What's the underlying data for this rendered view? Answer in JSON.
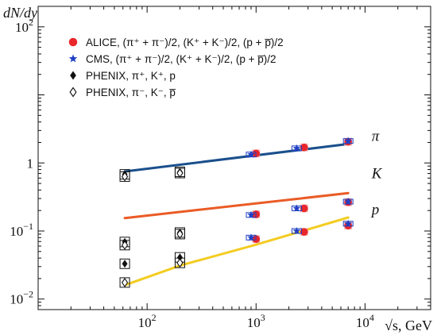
{
  "chart_data": {
    "type": "scatter",
    "ylabel": "dN/dy",
    "xlabel": "√s, GeV",
    "x_scale": "log",
    "y_scale": "log",
    "xlim": [
      10,
      40000
    ],
    "ylim": [
      0.007,
      200
    ],
    "x_ticks": [
      {
        "value": 100,
        "base": "10",
        "exp": "2"
      },
      {
        "value": 1000,
        "base": "10",
        "exp": "3"
      },
      {
        "value": 10000,
        "base": "10",
        "exp": "4"
      }
    ],
    "y_ticks": [
      {
        "value": 0.01,
        "base": "10",
        "exp": "−2"
      },
      {
        "value": 0.1,
        "base": "10",
        "exp": "−1"
      },
      {
        "value": 1,
        "base": "1",
        "exp": ""
      },
      {
        "value": 100,
        "base": "10",
        "exp": "2"
      }
    ],
    "legend": {
      "position": "top-left",
      "entries": [
        {
          "marker": "circle",
          "color": "#e8262b",
          "label": "ALICE, (π⁺ + π⁻)/2, (K⁺ + K⁻)/2, (p + p̅)/2"
        },
        {
          "marker": "star",
          "color": "#1f3fc4",
          "label": "CMS, (π⁺ + π⁻)/2, (K⁺ + K⁻)/2, (p + p̅)/2"
        },
        {
          "marker": "diamond-filled",
          "color": "#111111",
          "label": "PHENIX, π⁺, K⁺, p"
        },
        {
          "marker": "diamond-open",
          "color": "#111111",
          "label": "PHENIX, π⁻, K⁻, p̅"
        }
      ]
    },
    "annotations": [
      {
        "text": "π",
        "x": 11500,
        "y": 2.1
      },
      {
        "text": "K",
        "x": 11500,
        "y": 0.6
      },
      {
        "text": "p",
        "x": 11500,
        "y": 0.175
      }
    ],
    "series": [
      {
        "name": "ALICE",
        "marker": "circle",
        "color": "#e8262b",
        "points": [
          {
            "x": 1000,
            "y": 1.38
          },
          {
            "x": 2760,
            "y": 1.69
          },
          {
            "x": 7000,
            "y": 2.05
          },
          {
            "x": 1000,
            "y": 0.176
          },
          {
            "x": 2760,
            "y": 0.215
          },
          {
            "x": 7000,
            "y": 0.265
          },
          {
            "x": 1000,
            "y": 0.076
          },
          {
            "x": 2760,
            "y": 0.097
          },
          {
            "x": 7000,
            "y": 0.12
          }
        ]
      },
      {
        "name": "CMS",
        "marker": "star",
        "color": "#1f3fc4",
        "points": [
          {
            "x": 900,
            "y": 1.33
          },
          {
            "x": 2360,
            "y": 1.64
          },
          {
            "x": 7000,
            "y": 2.1
          },
          {
            "x": 900,
            "y": 0.172
          },
          {
            "x": 2360,
            "y": 0.215
          },
          {
            "x": 7000,
            "y": 0.27
          },
          {
            "x": 900,
            "y": 0.08
          },
          {
            "x": 2360,
            "y": 0.1
          },
          {
            "x": 7000,
            "y": 0.128
          }
        ]
      },
      {
        "name": "PHENIX, π⁺, K⁺, p",
        "marker": "diamond-filled",
        "color": "#111111",
        "points": [
          {
            "x": 62.4,
            "y": 0.68
          },
          {
            "x": 200,
            "y": 0.74
          },
          {
            "x": 62.4,
            "y": 0.069
          },
          {
            "x": 200,
            "y": 0.095
          },
          {
            "x": 62.4,
            "y": 0.033
          },
          {
            "x": 200,
            "y": 0.041
          }
        ]
      },
      {
        "name": "PHENIX, π⁻, K⁻, p̅",
        "marker": "diamond-open",
        "color": "#111111",
        "points": [
          {
            "x": 62.4,
            "y": 0.63
          },
          {
            "x": 200,
            "y": 0.71
          },
          {
            "x": 62.4,
            "y": 0.062
          },
          {
            "x": 200,
            "y": 0.09
          },
          {
            "x": 62.4,
            "y": 0.0175
          },
          {
            "x": 200,
            "y": 0.034
          }
        ]
      }
    ],
    "curves": [
      {
        "particle": "π",
        "color": "#1a4f8c",
        "points": [
          {
            "x": 62.4,
            "y": 0.75
          },
          {
            "x": 7000,
            "y": 1.9
          }
        ]
      },
      {
        "particle": "K",
        "color": "#ea5b25",
        "points": [
          {
            "x": 62.4,
            "y": 0.155
          },
          {
            "x": 7000,
            "y": 0.36
          }
        ]
      },
      {
        "particle": "p",
        "color": "#f3cc21",
        "points": [
          {
            "x": 62.4,
            "y": 0.016
          },
          {
            "x": 200,
            "y": 0.031
          },
          {
            "x": 1000,
            "y": 0.063
          },
          {
            "x": 7000,
            "y": 0.158
          }
        ]
      }
    ]
  }
}
